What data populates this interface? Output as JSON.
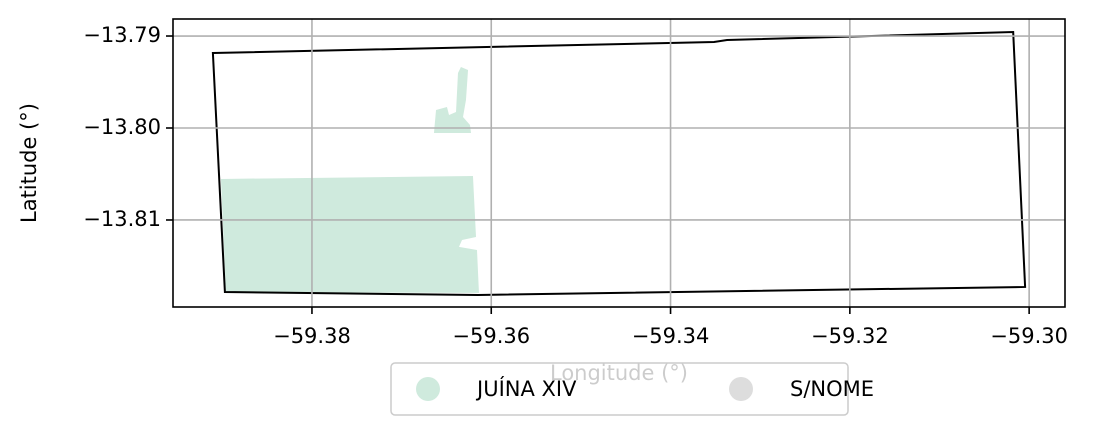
{
  "chart_data": {
    "type": "map",
    "xlabel": "Longitude (°)",
    "ylabel": "Latitude (°)",
    "xlim": [
      -59.3955,
      -59.296
    ],
    "ylim": [
      -13.81946,
      -13.78815
    ],
    "xticks": [
      {
        "value": -59.38,
        "label": "−59.38"
      },
      {
        "value": -59.36,
        "label": "−59.36"
      },
      {
        "value": -59.34,
        "label": "−59.34"
      },
      {
        "value": -59.32,
        "label": "−59.32"
      },
      {
        "value": -59.3,
        "label": "−59.30"
      }
    ],
    "yticks": [
      {
        "value": -13.79,
        "label": "−13.79"
      },
      {
        "value": -13.8,
        "label": "−13.80"
      },
      {
        "value": -13.81,
        "label": "−13.81"
      }
    ],
    "grid": true,
    "legend": "lower center",
    "boundary": {
      "color": "#000000",
      "x": [
        -59.39105,
        -59.33515,
        -59.3337,
        -59.30178,
        -59.30045,
        -59.36148,
        -59.38971
      ],
      "y": [
        -13.79185,
        -13.79065,
        -13.79043,
        -13.78957,
        -13.81728,
        -13.81815,
        -13.81783
      ]
    },
    "series": [
      {
        "name": "JUÍNA XIV",
        "color": "#cfeadd",
        "polygons": [
          {
            "x": [
              -59.39015,
              -59.36204,
              -59.3617,
              -59.36326,
              -59.3636,
              -59.36159,
              -59.36137,
              -59.3896
            ],
            "y": [
              -13.80554,
              -13.80522,
              -13.81185,
              -13.81217,
              -13.81293,
              -13.81326,
              -13.81793,
              -13.81783
            ]
          },
          {
            "x": [
              -59.36639,
              -59.36616,
              -59.36494,
              -59.36471,
              -59.36393,
              -59.36371,
              -59.36338,
              -59.36259,
              -59.36282,
              -59.36315,
              -59.36237,
              -59.36226
            ],
            "y": [
              -13.80054,
              -13.79804,
              -13.79772,
              -13.79859,
              -13.79826,
              -13.79402,
              -13.79337,
              -13.7937,
              -13.79696,
              -13.7988,
              -13.79967,
              -13.80054
            ]
          }
        ]
      },
      {
        "name": "S/NOME",
        "color": "#dddddd",
        "polygons": []
      }
    ]
  }
}
